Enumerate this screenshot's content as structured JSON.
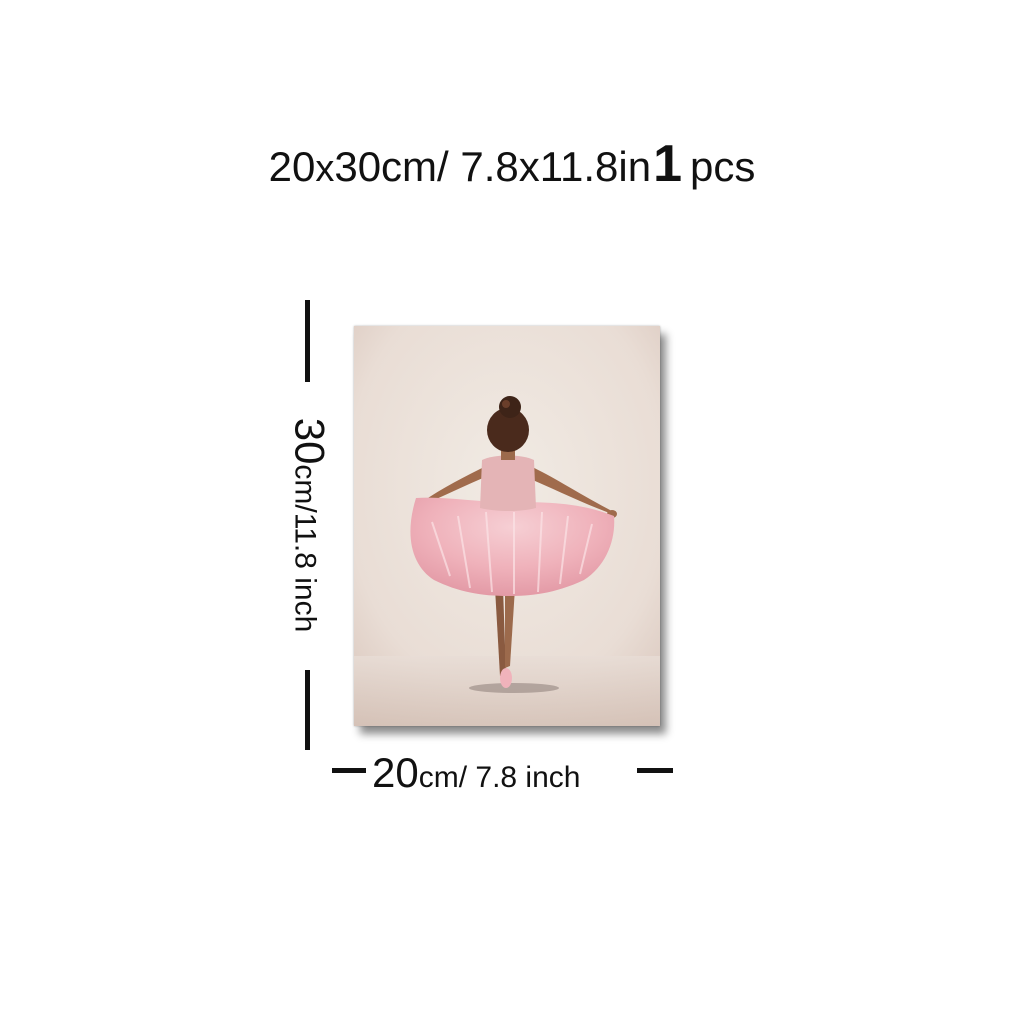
{
  "header": {
    "size_a": "20",
    "times": "x",
    "size_b": "30cm/ 7.8x11.8in",
    "count_number": "1",
    "count_unit": "pcs"
  },
  "height_dimension": {
    "value": "30",
    "unit_text": "cm/11.8 inch"
  },
  "width_dimension": {
    "value": "20",
    "unit_text": "cm/ 7.8 inch"
  },
  "artwork": {
    "subject": "ballerina-painting",
    "colors": {
      "background": "#ece3dc",
      "tutu": "#f2bcc3",
      "hair": "#4a2a1c",
      "skin": "#b07a5a"
    }
  }
}
